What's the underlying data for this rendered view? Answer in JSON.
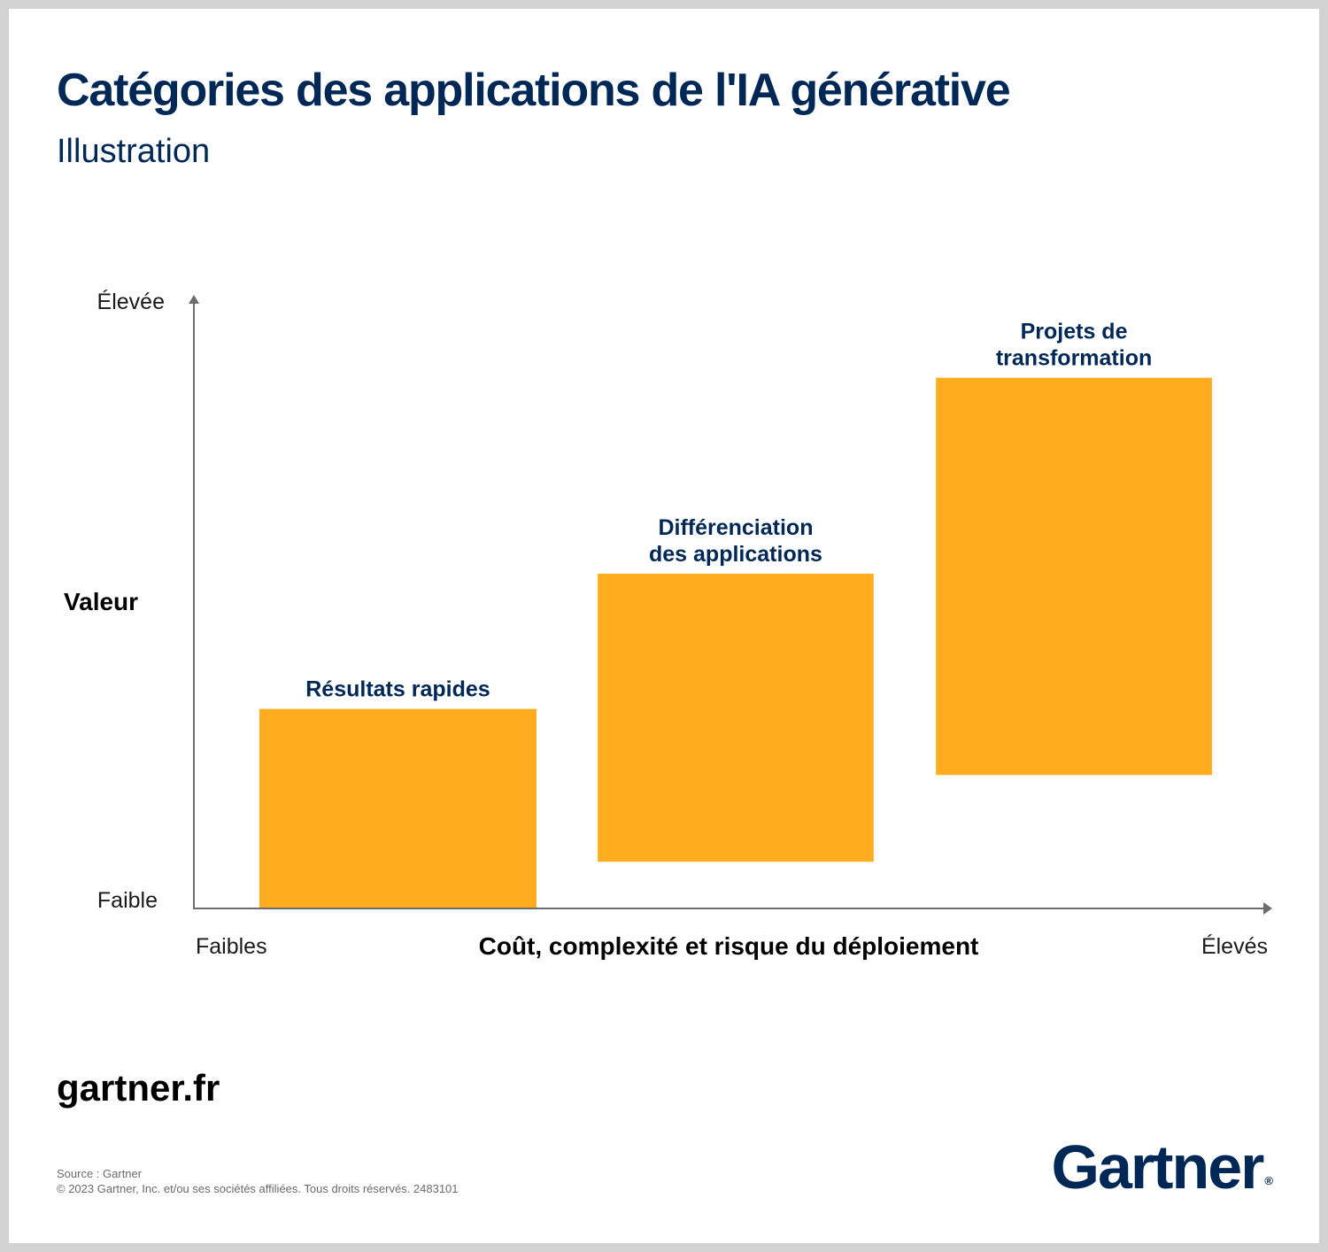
{
  "header": {
    "title": "Catégories des applications de l'IA générative",
    "subtitle": "Illustration"
  },
  "chart_data": {
    "type": "floating-bar",
    "ylabel": "Valeur",
    "xlabel": "Coût, complexité et risque du déploiement",
    "y_tick_labels": [
      "Faible",
      "Élevée"
    ],
    "x_tick_labels": [
      "Faibles",
      "Élevés"
    ],
    "categories": [
      {
        "label": [
          "Résultats rapides"
        ],
        "x_range": [
          0.061,
          0.319
        ],
        "value_range": [
          0.0,
          0.329
        ]
      },
      {
        "label": [
          "Différenciation",
          "des applications"
        ],
        "x_range": [
          0.376,
          0.633
        ],
        "value_range": [
          0.077,
          0.552
        ]
      },
      {
        "label": [
          "Projets de",
          "transformation"
        ],
        "x_range": [
          0.691,
          0.948
        ],
        "value_range": [
          0.22,
          0.875
        ]
      }
    ],
    "xlim": [
      0,
      1
    ],
    "ylim": [
      0,
      1
    ],
    "bar_color": "#FFAD1F",
    "axis_color": "#6d6d6d",
    "label_color": "#002856"
  },
  "footer": {
    "site": "gartner.fr",
    "source": "Source : Gartner",
    "copyright": "© 2023 Gartner, Inc. et/ou ses sociétés affiliées. Tous droits réservés. 2483101",
    "logo": "Gartner",
    "logo_mark": "®"
  }
}
